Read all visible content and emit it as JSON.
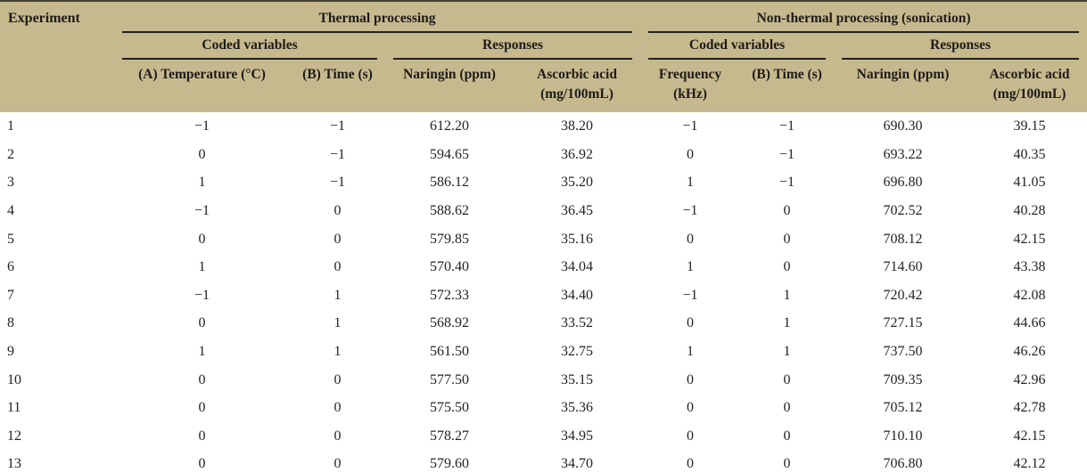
{
  "colors": {
    "header_bg": "#c6b98e",
    "rule_dark": "#23211c",
    "text": "#1d1c18"
  },
  "table": {
    "corner_label": "Experiment",
    "group_thermal": "Thermal processing",
    "group_nonthermal": "Non-thermal processing (sonication)",
    "subgroup_coded": "Coded variables",
    "subgroup_responses": "Responses",
    "columns": {
      "thermal_temperature": "(A) Temperature (°C)",
      "thermal_time": "(B) Time (s)",
      "thermal_naringin": "Naringin (ppm)",
      "ascorbic_line1": "Ascorbic acid",
      "ascorbic_line2": "(mg/100mL)",
      "frequency_line1": "Frequency",
      "frequency_line2": "(kHz)",
      "sonication_time": "(B) Time (s)",
      "sonication_naringin": "Naringin (ppm)"
    },
    "rows": [
      [
        "1",
        "−1",
        "−1",
        "612.20",
        "38.20",
        "−1",
        "−1",
        "690.30",
        "39.15"
      ],
      [
        "2",
        "0",
        "−1",
        "594.65",
        "36.92",
        "0",
        "−1",
        "693.22",
        "40.35"
      ],
      [
        "3",
        "1",
        "−1",
        "586.12",
        "35.20",
        "1",
        "−1",
        "696.80",
        "41.05"
      ],
      [
        "4",
        "−1",
        "0",
        "588.62",
        "36.45",
        "−1",
        "0",
        "702.52",
        "40.28"
      ],
      [
        "5",
        "0",
        "0",
        "579.85",
        "35.16",
        "0",
        "0",
        "708.12",
        "42.15"
      ],
      [
        "6",
        "1",
        "0",
        "570.40",
        "34.04",
        "1",
        "0",
        "714.60",
        "43.38"
      ],
      [
        "7",
        "−1",
        "1",
        "572.33",
        "34.40",
        "−1",
        "1",
        "720.42",
        "42.08"
      ],
      [
        "8",
        "0",
        "1",
        "568.92",
        "33.52",
        "0",
        "1",
        "727.15",
        "44.66"
      ],
      [
        "9",
        "1",
        "1",
        "561.50",
        "32.75",
        "1",
        "1",
        "737.50",
        "46.26"
      ],
      [
        "10",
        "0",
        "0",
        "577.50",
        "35.15",
        "0",
        "0",
        "709.35",
        "42.96"
      ],
      [
        "11",
        "0",
        "0",
        "575.50",
        "35.36",
        "0",
        "0",
        "705.12",
        "42.78"
      ],
      [
        "12",
        "0",
        "0",
        "578.27",
        "34.95",
        "0",
        "0",
        "710.10",
        "42.15"
      ],
      [
        "13",
        "0",
        "0",
        "579.60",
        "34.70",
        "0",
        "0",
        "706.80",
        "42.12"
      ]
    ],
    "column_cell_names": [
      "experiment-number-cell",
      "thermal-temperature-coded-cell",
      "thermal-time-coded-cell",
      "thermal-naringin-cell",
      "thermal-ascorbic-cell",
      "sonication-frequency-coded-cell",
      "sonication-time-coded-cell",
      "sonication-naringin-cell",
      "sonication-ascorbic-cell"
    ]
  }
}
